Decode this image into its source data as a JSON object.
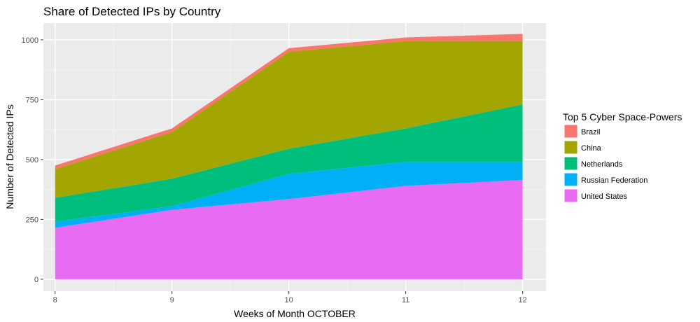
{
  "chart_data": {
    "type": "area",
    "stacked": true,
    "title": "Share of Detected IPs by Country",
    "xlabel": "Weeks of Month OCTOBER",
    "ylabel": "Number of Detected IPs",
    "x": [
      8,
      9,
      10,
      11,
      12
    ],
    "xticks": [
      "8",
      "9",
      "10",
      "11",
      "12"
    ],
    "yticks": [
      "0",
      "250",
      "500",
      "750",
      "1000"
    ],
    "xlim": [
      7.9,
      12.2
    ],
    "ylim": [
      -50,
      1070
    ],
    "grid": true,
    "legend": {
      "title": "Top 5 Cyber Space-Powers",
      "position": "right"
    },
    "series": [
      {
        "name": "Brazil",
        "color": "#F8766D",
        "values": [
          15,
          15,
          15,
          15,
          30
        ]
      },
      {
        "name": "China",
        "color": "#A3A500",
        "values": [
          120,
          195,
          405,
          365,
          265
        ]
      },
      {
        "name": "Netherlands",
        "color": "#00BF7D",
        "values": [
          100,
          115,
          105,
          140,
          240
        ]
      },
      {
        "name": "Russian Federation",
        "color": "#00B0F6",
        "values": [
          25,
          15,
          105,
          100,
          75
        ]
      },
      {
        "name": "United States",
        "color": "#E76BF3",
        "values": [
          215,
          290,
          335,
          390,
          415
        ]
      }
    ]
  }
}
